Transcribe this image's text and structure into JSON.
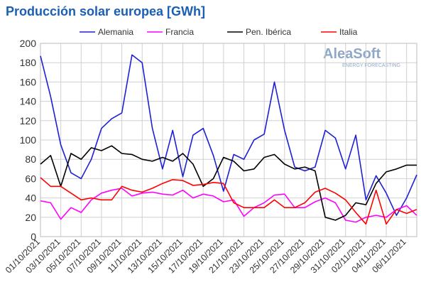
{
  "chart_data": {
    "type": "line",
    "title": "Producción solar europea [GWh]",
    "logo": {
      "name": "AleaSoft",
      "tagline": "ENERGY FORECASTING"
    },
    "categories": [
      "01/10/2021",
      null,
      "03/10/2021",
      null,
      "05/10/2021",
      null,
      "07/10/2021",
      null,
      "09/10/2021",
      null,
      "11/10/2021",
      null,
      "13/10/2021",
      null,
      "15/10/2021",
      null,
      "17/10/2021",
      null,
      "19/10/2021",
      null,
      "21/10/2021",
      null,
      "23/10/2021",
      null,
      "25/10/2021",
      null,
      "27/10/2021",
      null,
      "29/10/2021",
      null,
      "31/10/2021",
      null,
      "02/11/2021",
      null,
      "04/11/2021",
      null,
      "06/11/2021",
      null
    ],
    "series": [
      {
        "name": "Alemania",
        "color": "#1f1fd6",
        "values": [
          187,
          145,
          95,
          66,
          60,
          80,
          112,
          122,
          128,
          188,
          180,
          112,
          70,
          110,
          62,
          105,
          112,
          84,
          47,
          85,
          80,
          100,
          106,
          160,
          110,
          72,
          68,
          72,
          110,
          102,
          70,
          105,
          38,
          63,
          45,
          22,
          40,
          64
        ]
      },
      {
        "name": "Francia",
        "color": "#ff00ff",
        "values": [
          37,
          35,
          18,
          30,
          25,
          38,
          45,
          48,
          50,
          42,
          45,
          46,
          44,
          43,
          48,
          40,
          44,
          42,
          36,
          38,
          21,
          30,
          35,
          43,
          44,
          30,
          30,
          36,
          40,
          35,
          17,
          15,
          20,
          22,
          20,
          28,
          32,
          22
        ]
      },
      {
        "name": "Pen. Ibérica",
        "color": "#000000",
        "values": [
          75,
          84,
          52,
          86,
          80,
          92,
          89,
          94,
          86,
          85,
          80,
          78,
          82,
          78,
          86,
          75,
          52,
          60,
          82,
          78,
          68,
          70,
          82,
          85,
          75,
          70,
          72,
          68,
          20,
          17,
          22,
          35,
          33,
          55,
          67,
          70,
          74,
          74
        ]
      },
      {
        "name": "Italia",
        "color": "#ff0000",
        "values": [
          61,
          52,
          52,
          45,
          38,
          40,
          38,
          38,
          52,
          48,
          46,
          50,
          55,
          59,
          58,
          53,
          54,
          56,
          55,
          35,
          30,
          30,
          30,
          38,
          30,
          30,
          35,
          46,
          50,
          45,
          38,
          25,
          13,
          48,
          13,
          28,
          24,
          28
        ]
      }
    ],
    "ylim": [
      0,
      200
    ],
    "yticks": [
      0,
      20,
      40,
      60,
      80,
      100,
      120,
      140,
      160,
      180,
      200
    ],
    "grid": true,
    "legend": "top"
  }
}
